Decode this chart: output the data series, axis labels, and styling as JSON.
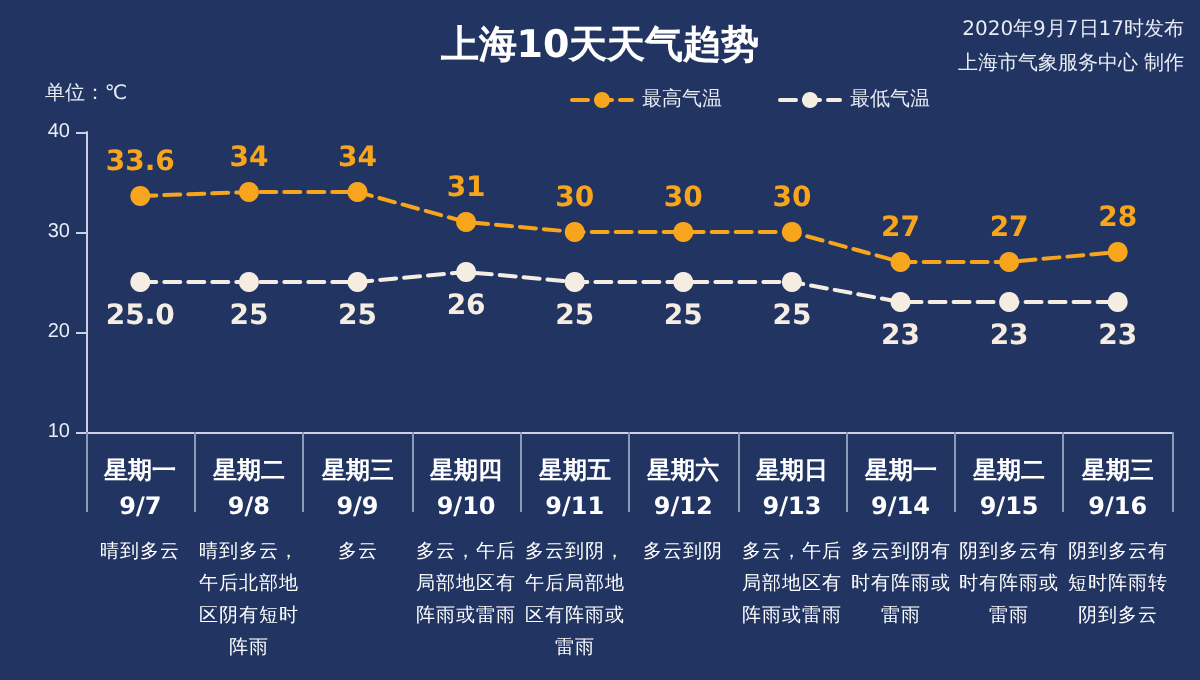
{
  "chart_data": {
    "type": "line",
    "title": "上海10天天气趋势",
    "ylabel": "单位：℃",
    "annotations": [
      "2020年9月7日17时发布",
      "上海市气象服务中心 制作"
    ],
    "categories": [
      "星期一\n9/7\n晴到多云",
      "星期二\n9/8\n晴到多云，午后北部地区阴有短时阵雨",
      "星期三\n9/9\n多云",
      "星期四\n9/10\n多云，午后局部地区有阵雨或雷雨",
      "星期五\n9/11\n多云到阴，午后局部地区有阵雨或雷雨",
      "星期六\n9/12\n多云到阴",
      "星期日\n9/13\n多云，午后局部地区有阵雨或雷雨",
      "星期一\n9/14\n多云到阴有时有阵雨或雷雨",
      "星期二\n9/15\n阴到多云有时有阵雨或雷雨",
      "星期三\n9/16\n阴到多云有短时阵雨转阴到多云"
    ],
    "series": [
      {
        "name": "最高气温",
        "color": "#f7a51c",
        "values": [
          33.6,
          34,
          34,
          31,
          30,
          30,
          30,
          27,
          27,
          28
        ],
        "value_labels": [
          "33.6",
          "34",
          "34",
          "31",
          "30",
          "30",
          "30",
          "27",
          "27",
          "28"
        ]
      },
      {
        "name": "最低气温",
        "color": "#f6ede2",
        "values": [
          25,
          25,
          25,
          26,
          25,
          25,
          25,
          23,
          23,
          23
        ],
        "value_labels": [
          "25.0",
          "25",
          "25",
          "26",
          "25",
          "25",
          "25",
          "23",
          "23",
          "23"
        ]
      }
    ],
    "ylim": [
      10,
      40
    ],
    "yticks": [
      10,
      20,
      30,
      40
    ],
    "grid": false,
    "legend": "top right",
    "marker": "circle",
    "line_style": "dashed"
  }
}
